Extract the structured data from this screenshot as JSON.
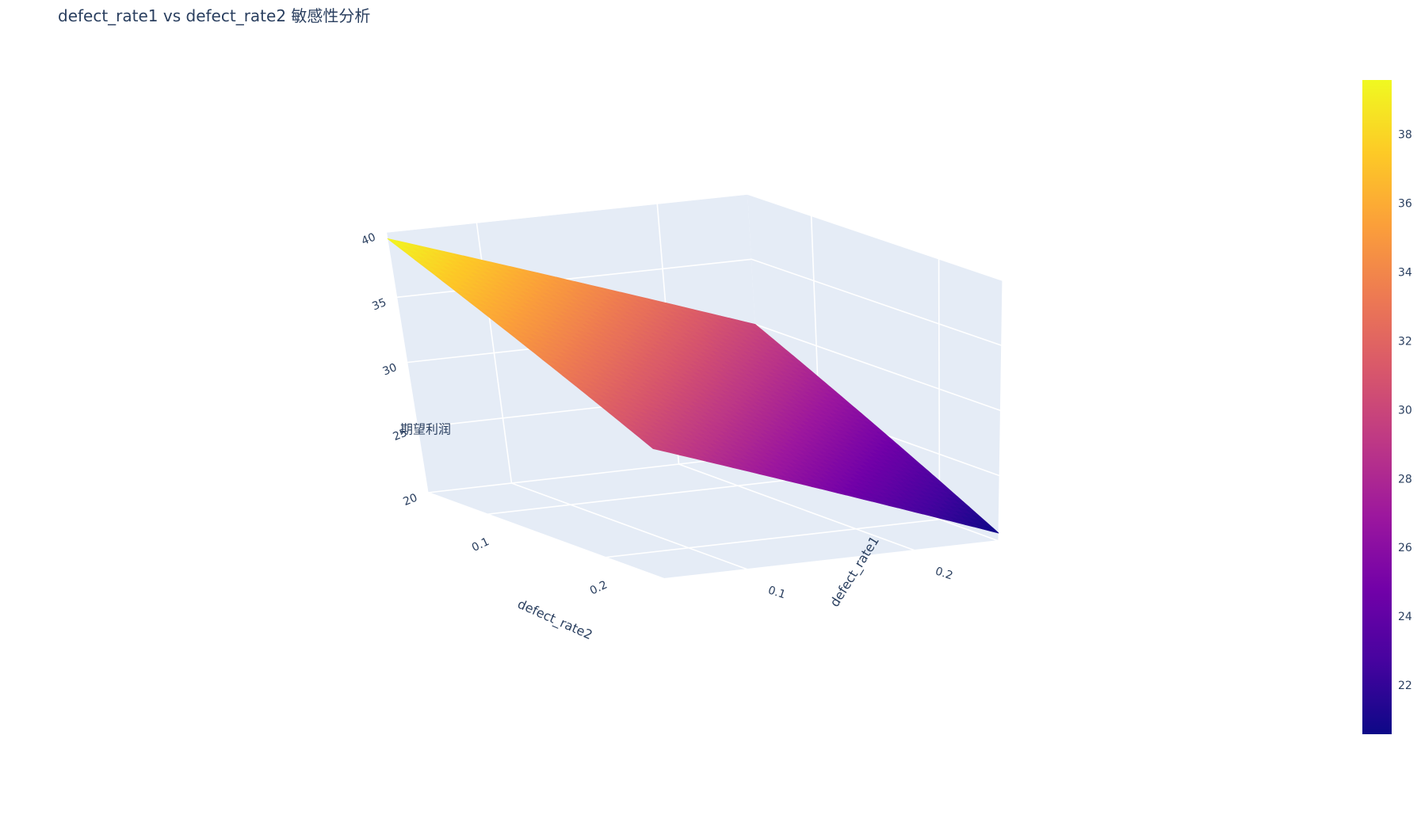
{
  "chart_data": {
    "type": "surface",
    "title": "defect_rate1 vs defect_rate2 敏感性分析",
    "x": {
      "label": "defect_rate1",
      "ticks": [
        "0.1",
        "0.2"
      ],
      "range": [
        0.05,
        0.25
      ]
    },
    "y": {
      "label": "defect_rate2",
      "ticks": [
        "0.1",
        "0.2"
      ],
      "range": [
        0.05,
        0.25
      ]
    },
    "z": {
      "label": "期望利润",
      "ticks": [
        "20",
        "25",
        "30",
        "35",
        "40"
      ],
      "range": [
        20,
        40
      ]
    },
    "surface_corners": [
      {
        "defect_rate1": 0.05,
        "defect_rate2": 0.05,
        "value": 39.5
      },
      {
        "defect_rate1": 0.25,
        "defect_rate2": 0.05,
        "value": 30.0
      },
      {
        "defect_rate1": 0.05,
        "defect_rate2": 0.25,
        "value": 30.0
      },
      {
        "defect_rate1": 0.25,
        "defect_rate2": 0.25,
        "value": 20.6
      }
    ],
    "colorscale": [
      "#0d0887",
      "#46039f",
      "#7201a8",
      "#9c179e",
      "#bd3786",
      "#d8576b",
      "#ed7953",
      "#fb9f3a",
      "#fdca26",
      "#f0f921"
    ],
    "colorbar": {
      "ticks": [
        "22",
        "24",
        "26",
        "28",
        "30",
        "32",
        "34",
        "36",
        "38"
      ],
      "range": [
        20.6,
        39.6
      ]
    },
    "grid": true,
    "scene_bgcolor": "#e5ecf6",
    "legend": "none"
  }
}
